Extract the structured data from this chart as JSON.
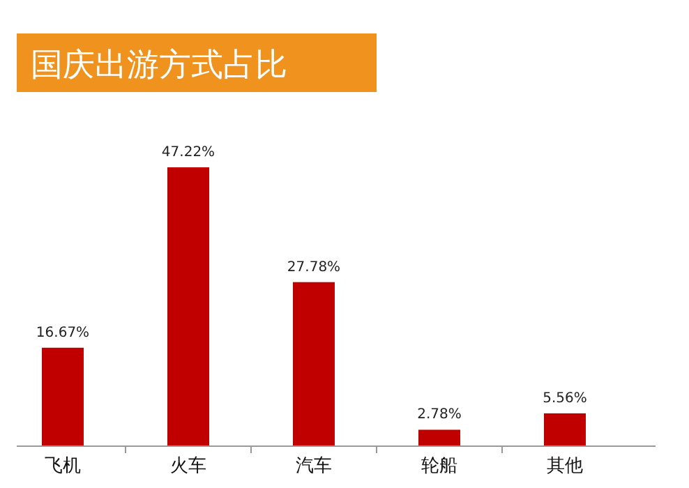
{
  "chart_data": {
    "type": "bar",
    "title": "国庆出游方式占比",
    "categories": [
      "飞机",
      "火车",
      "汽车",
      "轮船",
      "其他"
    ],
    "values": [
      16.67,
      47.22,
      27.78,
      2.78,
      5.56
    ],
    "value_labels": [
      "16.67%",
      "47.22%",
      "27.78%",
      "2.78%",
      "5.56%"
    ],
    "color": "#c00000"
  }
}
